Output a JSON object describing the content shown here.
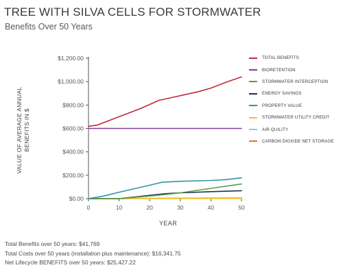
{
  "header": {
    "title": "TREE WITH SILVA CELLS FOR STORMWATER",
    "subtitle": "Benefits Over 50 Years"
  },
  "summary": {
    "line1": "Total Benefits over 50 years: $41,769",
    "line2": "Total Costs over 50 years (installation plus maintenance): $16,341.75",
    "line3": "Net Lifecycle BENEFITS over 50 years: $25,427.22"
  },
  "colors": {
    "axis": "#555555",
    "tick_text": "#555555",
    "grid": "#e6e6e6"
  },
  "chart_data": {
    "type": "line",
    "title": "TREE WITH SILVA CELLS FOR STORMWATER",
    "subtitle": "Benefits Over 50 Years",
    "xlabel": "YEAR",
    "ylabel": "VALUE OF AVERAGE ANNUAL BENEFITS IN $",
    "xlim": [
      0,
      50
    ],
    "ylim": [
      0,
      1200
    ],
    "xticks": [
      0,
      10,
      20,
      30,
      40,
      50
    ],
    "xtick_labels": [
      "0",
      "10",
      "20",
      "30",
      "40",
      "50"
    ],
    "yticks": [
      0,
      200,
      400,
      600,
      800,
      1000,
      1200
    ],
    "ytick_labels": [
      "$0.00",
      "$200.00",
      "$400.00",
      "$600.00",
      "$800.00",
      "$1,000.00",
      "$1,200.00"
    ],
    "grid": false,
    "legend_position": "right",
    "series": [
      {
        "name": "TOTAL BENEFITS",
        "color": "#c0283c",
        "x": [
          0,
          3,
          10,
          17,
          23,
          30,
          36,
          40,
          45,
          50
        ],
        "y": [
          618,
          630,
          700,
          770,
          840,
          880,
          915,
          945,
          995,
          1040
        ]
      },
      {
        "name": "BIORETENTION",
        "color": "#7a3fa3",
        "x": [
          0,
          50
        ],
        "y": [
          600,
          600
        ]
      },
      {
        "name": "STORMWATER INTERCEPTION",
        "color": "#5a9a4a",
        "x": [
          0,
          10,
          20,
          25,
          30,
          40,
          50
        ],
        "y": [
          0,
          0,
          22,
          35,
          50,
          88,
          125
        ]
      },
      {
        "name": "ENERGY SAVINGS",
        "color": "#1e2f48",
        "x": [
          0,
          10,
          20,
          25,
          30,
          40,
          50
        ],
        "y": [
          0,
          0,
          28,
          42,
          50,
          60,
          68
        ]
      },
      {
        "name": "PROPERTY VALUE",
        "color": "#2b93a8",
        "x": [
          0,
          5,
          10,
          15,
          20,
          24,
          30,
          35,
          40,
          45,
          50
        ],
        "y": [
          0,
          22,
          55,
          85,
          115,
          140,
          148,
          152,
          155,
          163,
          178
        ]
      },
      {
        "name": "STORMWATER UTILITY CREDIT",
        "color": "#f2c01e",
        "x": [
          0,
          50
        ],
        "y": [
          0,
          2
        ]
      },
      {
        "name": "AIR QUILITY",
        "color": "#8fc3e6",
        "x": [
          0,
          50
        ],
        "y": [
          0,
          3
        ]
      },
      {
        "name": "CARBON DIOXIDE NET STORAGE",
        "color": "#e8702a",
        "x": [
          0,
          50
        ],
        "y": [
          0,
          6
        ]
      }
    ]
  }
}
